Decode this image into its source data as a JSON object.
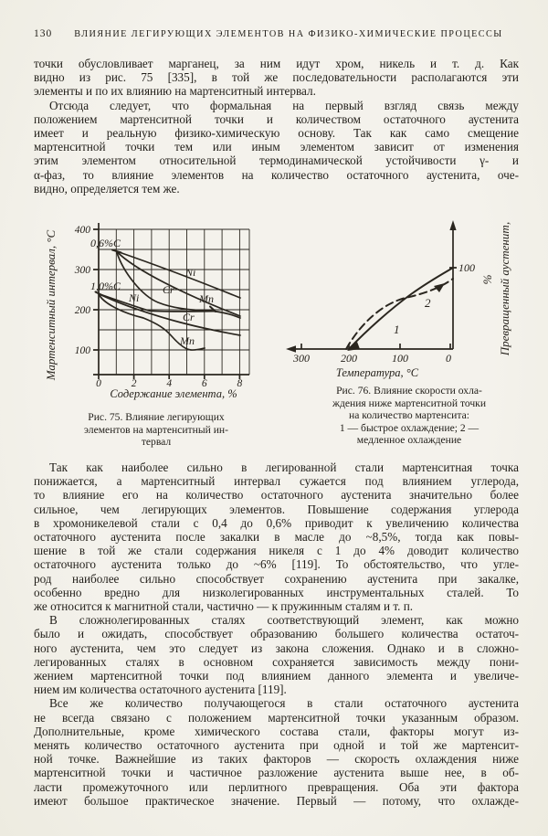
{
  "page_header": {
    "number": "130",
    "title": "ВЛИЯНИЕ ЛЕГИРУЮЩИХ ЭЛЕМЕНТОВ НА ФИЗИКО-ХИМИЧЕСКИЕ ПРОЦЕССЫ"
  },
  "paragraphs": {
    "p1": [
      "точки обусловливает марганец, за ним идут хром, никель и т. д. Как",
      "видно из рис. 75 [335], в той же последовательности располагаются эти",
      "элементы и по их влиянию на мартенситный интервал."
    ],
    "p2": [
      "Отсюда следует, что формальная на первый взгляд связь между",
      "положением мартенситной точки и количеством остаточного аустенита",
      "имеет и реальную физико-химическую основу. Так как само смещение",
      "мартенситной точки тем или иным элементом зависит от изменения",
      "этим элементом относительной термодинамической устойчивости γ- и",
      "α-фаз, то влияние элементов на количество остаточного аустенита, оче-",
      "видно, определяется тем же."
    ],
    "p3": [
      "Так как наиболее сильно в легированной стали мартенситная точка",
      "понижается, а мартенситный интервал сужается под влиянием углерода,",
      "то влияние его на количество остаточного аустенита значительно более",
      "сильное, чем легирующих элементов. Повышение содержания углерода",
      "в хромоникелевой стали с 0,4 до 0,6% приводит к увеличению количества",
      "остаточного аустенита после закалки в масле до ~8,5%, тогда как повы-",
      "шение в той же стали содержания никеля с 1 до 4% доводит количество",
      "остаточного аустенита только до ~6% [119]. То обстоятельство, что угле-",
      "род наиболее сильно способствует сохранению аустенита при закалке,",
      "особенно вредно для низколегированных инструментальных сталей. То",
      "же относится к магнитной стали, частично — к пружинным сталям и т. п."
    ],
    "p4": [
      "В сложнолегированных сталях соответствующий элемент, как можно",
      "было и ожидать, способствует образованию большего количества остаточ-",
      "ного аустенита, чем это следует из закона сложения. Однако и в сложно-",
      "легированных сталях в основном сохраняется зависимость между пони-",
      "жением мартенситной точки под влиянием данного элемента и увеличе-",
      "нием им количества остаточного аустенита [119]."
    ],
    "p5": [
      "Все же количество получающегося в стали остаточного аустенита",
      "не всегда связано с положением мартенситной точки указанным образом.",
      "Дополнительные, кроме химического состава стали, факторы могут из-",
      "менять количество остаточного аустенита при одной и той же мартенсит-",
      "ной точке. Важнейшие из таких факторов — скорость охлаждения ниже",
      "мартенситной точки и частичное разложение аустенита выше нее, в об-",
      "ласти промежуточного или перлитного превращения. Оба эти фактора",
      "имеют большое практическое значение. Первый — потому, что охлажде-"
    ]
  },
  "fig75": {
    "ylabel": "Мартенситный интервал, °С",
    "xlabel": "Содержание элемента, %",
    "y_ticks": [
      "400",
      "300",
      "200",
      "100"
    ],
    "x_ticks": [
      "0",
      "2",
      "4",
      "6",
      "8"
    ],
    "label_06": "0,6%C",
    "label_10": "1,0%C",
    "ni_upper": "Ni",
    "cr_upper": "Cr",
    "mn_upper": "Mn",
    "ni_lower": "Ni",
    "cr_lower": "Cr",
    "mn_lower": "Mn",
    "caption": [
      "Рис. 75. Влияние легирующих",
      "элементов на мартенситный ин-",
      "тервал"
    ]
  },
  "fig76": {
    "xlabel": "Температура, °С",
    "ylabel_line1": "Превращенный аустенит,",
    "ylabel_line2": "%",
    "x_ticks": [
      "300",
      "200",
      "100",
      "0"
    ],
    "y_tick_100": "100",
    "label_1": "1",
    "label_2": "2",
    "caption": [
      "Рис. 76. Влияние скорости охла-",
      "ждения ниже мартенситной точки",
      "на количество мартенсита:",
      "1 — быстрое охлаждение; 2 —",
      "медленное охлаждение"
    ]
  },
  "chart_data": [
    {
      "type": "line",
      "title": "Рис. 75. Влияние легирующих элементов на мартенситный интервал",
      "xlabel": "Содержание элемента, %",
      "ylabel": "Мартенситный интервал, °С",
      "xlim": [
        0,
        8.5
      ],
      "ylim": [
        40,
        400
      ],
      "grid": true,
      "x_tick_labels": [
        0,
        2,
        4,
        6,
        8
      ],
      "y_tick_labels": [
        100,
        200,
        300,
        400
      ],
      "series": [
        {
          "name": "Ni (0,6%C)",
          "x": [
            1,
            2,
            4,
            6,
            8
          ],
          "y": [
            345,
            325,
            290,
            260,
            230
          ]
        },
        {
          "name": "Cr (0,6%C)",
          "x": [
            1,
            2,
            4,
            6,
            8
          ],
          "y": [
            345,
            310,
            260,
            220,
            185
          ]
        },
        {
          "name": "Mn (0,6%C)",
          "x": [
            1,
            2,
            3,
            4,
            6.5,
            8
          ],
          "y": [
            345,
            275,
            230,
            208,
            197,
            180
          ]
        },
        {
          "name": "Ni (1,0%C)",
          "x": [
            0,
            1,
            2,
            3,
            5,
            6.5
          ],
          "y": [
            240,
            228,
            210,
            198,
            198,
            198
          ]
        },
        {
          "name": "Cr (1,0%C)",
          "x": [
            0,
            2,
            4,
            6,
            8
          ],
          "y": [
            240,
            200,
            176,
            157,
            137
          ]
        },
        {
          "name": "Mn (1,0%C)",
          "x": [
            0,
            1,
            2.5,
            4,
            5.3,
            6
          ],
          "y": [
            240,
            213,
            182,
            135,
            100,
            104
          ]
        }
      ]
    },
    {
      "type": "line",
      "title": "Рис. 76. Влияние скорости охлаждения ниже мартенситной точки на количество мартенсита",
      "xlabel": "Температура, °С",
      "ylabel": "Превращенный аустенит, %",
      "x_reversed": true,
      "xlim": [
        320,
        0
      ],
      "ylim": [
        0,
        110
      ],
      "x_tick_labels": [
        300,
        200,
        100,
        0
      ],
      "y_tick_labels": [
        100
      ],
      "series": [
        {
          "name": "1 — быстрое охлаждение",
          "style": "solid",
          "x": [
            200,
            150,
            100,
            50,
            0
          ],
          "y": [
            0,
            28,
            55,
            80,
            100
          ]
        },
        {
          "name": "2 — медленное охлаждение",
          "style": "dashed",
          "x": [
            205,
            150,
            100,
            50,
            0
          ],
          "y": [
            0,
            38,
            57,
            72,
            85
          ]
        }
      ]
    }
  ]
}
